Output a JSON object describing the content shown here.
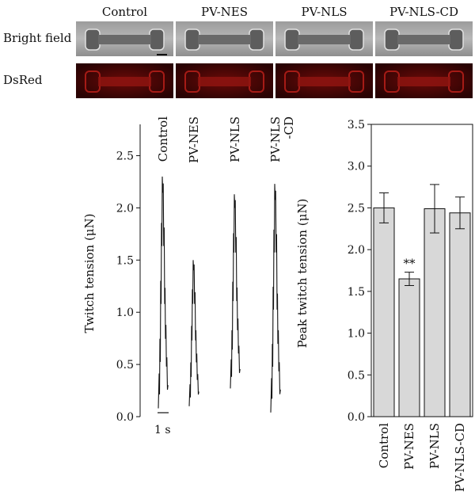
{
  "micrographs": {
    "conditions": [
      "Control",
      "PV-NES",
      "PV-NLS",
      "PV-NLS-CD"
    ],
    "row_labels": [
      "Bright field",
      "DsRed"
    ]
  },
  "chart_data": [
    {
      "type": "line",
      "ylabel": "Twitch tension (μN)",
      "ylim": [
        0,
        2.8
      ],
      "yticks": [
        0.0,
        0.5,
        1.0,
        1.5,
        2.0,
        2.5
      ],
      "scale_bar_label": "1 s",
      "series": [
        {
          "name": "Control",
          "peak": 2.3,
          "base": 0.08
        },
        {
          "name": "PV-NES",
          "peak": 1.5,
          "base": 0.1
        },
        {
          "name": "PV-NLS",
          "peak": 2.13,
          "base": 0.27
        },
        {
          "name": "PV-NLS\n-CD",
          "peak": 2.23,
          "base": 0.04
        }
      ]
    },
    {
      "type": "bar",
      "categories": [
        "Control",
        "PV-NES",
        "PV-NLS",
        "PV-NLS-CD"
      ],
      "values": [
        2.5,
        1.65,
        2.49,
        2.44
      ],
      "errors": [
        0.18,
        0.08,
        0.29,
        0.19
      ],
      "annotations": [
        "",
        "**",
        "",
        ""
      ],
      "ylabel": "Peak twitch tension (μN)",
      "ylim": [
        0,
        3.5
      ],
      "yticks": [
        0.0,
        0.5,
        1.0,
        1.5,
        2.0,
        2.5,
        3.0,
        3.5
      ]
    }
  ]
}
